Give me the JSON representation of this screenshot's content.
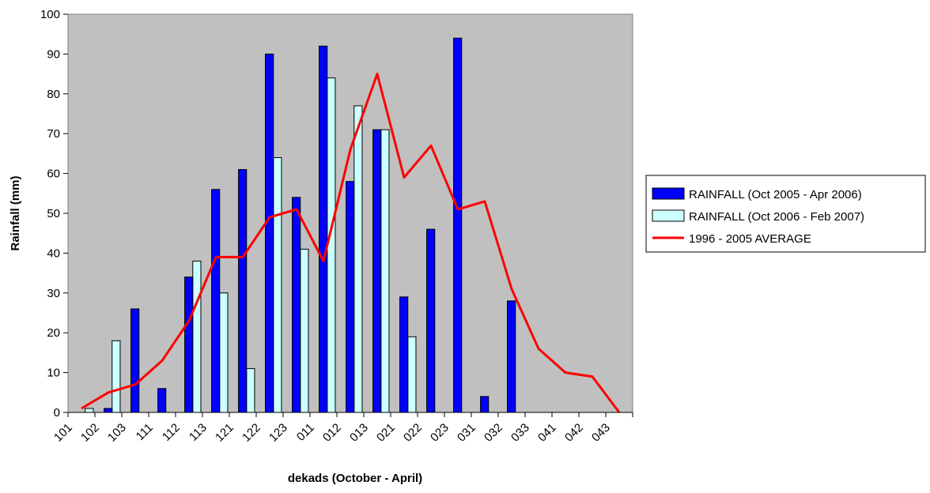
{
  "chart_data": {
    "type": "bar",
    "title": "",
    "xlabel": "dekads (October - April)",
    "ylabel": "Rainfall (mm)",
    "ylim": [
      0,
      100
    ],
    "yticks": [
      0,
      10,
      20,
      30,
      40,
      50,
      60,
      70,
      80,
      90,
      100
    ],
    "grid": false,
    "plot_background": "#C0C0C0",
    "legend_position": "right",
    "categories": [
      "101",
      "102",
      "103",
      "111",
      "112",
      "113",
      "121",
      "122",
      "123",
      "011",
      "012",
      "013",
      "021",
      "022",
      "023",
      "031",
      "032",
      "033",
      "041",
      "042",
      "043"
    ],
    "series": [
      {
        "name": "RAINFALL (Oct 2005 - Apr 2006)",
        "kind": "bar",
        "color": "#0000FF",
        "values": [
          0,
          1,
          26,
          6,
          34,
          56,
          61,
          90,
          54,
          92,
          58,
          71,
          29,
          46,
          94,
          4,
          28,
          0,
          0,
          0,
          0
        ]
      },
      {
        "name": "RAINFALL (Oct 2006 - Feb 2007)",
        "kind": "bar",
        "color": "#CCFFFF",
        "values": [
          1,
          18,
          0,
          0,
          38,
          30,
          11,
          64,
          41,
          84,
          77,
          71,
          19,
          0,
          0,
          0,
          0,
          0,
          0,
          0,
          0
        ]
      },
      {
        "name": "1996 - 2005 AVERAGE",
        "kind": "line",
        "color": "#FF0000",
        "values": [
          1,
          5,
          7,
          13,
          23,
          39,
          39,
          49,
          51,
          38,
          66,
          85,
          59,
          67,
          51,
          53,
          31,
          16,
          10,
          9,
          0
        ]
      }
    ]
  }
}
